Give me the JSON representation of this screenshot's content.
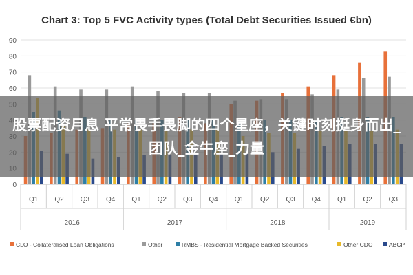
{
  "chart_data": {
    "type": "bar",
    "title": "Chart 3: Top 5 FVC Activity types (Total Debt Securities Issued €bn)",
    "ylim": [
      0,
      90
    ],
    "yticks": [
      0,
      10,
      20,
      30,
      40,
      50,
      60,
      70,
      80,
      90
    ],
    "grid": true,
    "legend_position": "bottom",
    "categories": [
      "Q1",
      "Q2",
      "Q3",
      "Q4",
      "Q1",
      "Q2",
      "Q3",
      "Q4",
      "Q1",
      "Q2",
      "Q3",
      "Q4",
      "Q1",
      "Q2",
      "Q3"
    ],
    "years": [
      {
        "label": "2016",
        "start": 0,
        "end": 3
      },
      {
        "label": "2017",
        "start": 4,
        "end": 7
      },
      {
        "label": "2018",
        "start": 8,
        "end": 11
      },
      {
        "label": "2019",
        "start": 12,
        "end": 14
      }
    ],
    "series": [
      {
        "name": "CLO - Collateralised Loan Obligations",
        "color": "#e8713a",
        "values": [
          30,
          32,
          34,
          35,
          38,
          38,
          42,
          38,
          50,
          52,
          57,
          61,
          68,
          76,
          83
        ]
      },
      {
        "name": "Other",
        "color": "#9a9a9a",
        "values": [
          68,
          61,
          59,
          59,
          61,
          58,
          57,
          57,
          52,
          53,
          53,
          56,
          59,
          66,
          67
        ]
      },
      {
        "name": "RMBS - Residential Mortgage Backed Securities",
        "color": "#2e7fa6",
        "values": [
          45,
          46,
          42,
          40,
          40,
          40,
          40,
          40,
          40,
          40,
          40,
          40,
          42,
          42,
          42
        ]
      },
      {
        "name": "Other CDO",
        "color": "#e8b92a",
        "values": [
          54,
          36,
          34,
          34,
          34,
          34,
          34,
          34,
          30,
          32,
          32,
          33,
          33,
          33,
          34
        ]
      },
      {
        "name": "ABCP",
        "color": "#2a4a8c",
        "values": [
          21,
          19,
          16,
          17,
          18,
          18,
          18,
          19,
          19,
          20,
          22,
          24,
          25,
          25,
          25
        ]
      }
    ]
  },
  "overlay_text": "股票配资月息 平常畏手畏脚的四个星座，关键时刻挺身而出_团队_金牛座_力量"
}
